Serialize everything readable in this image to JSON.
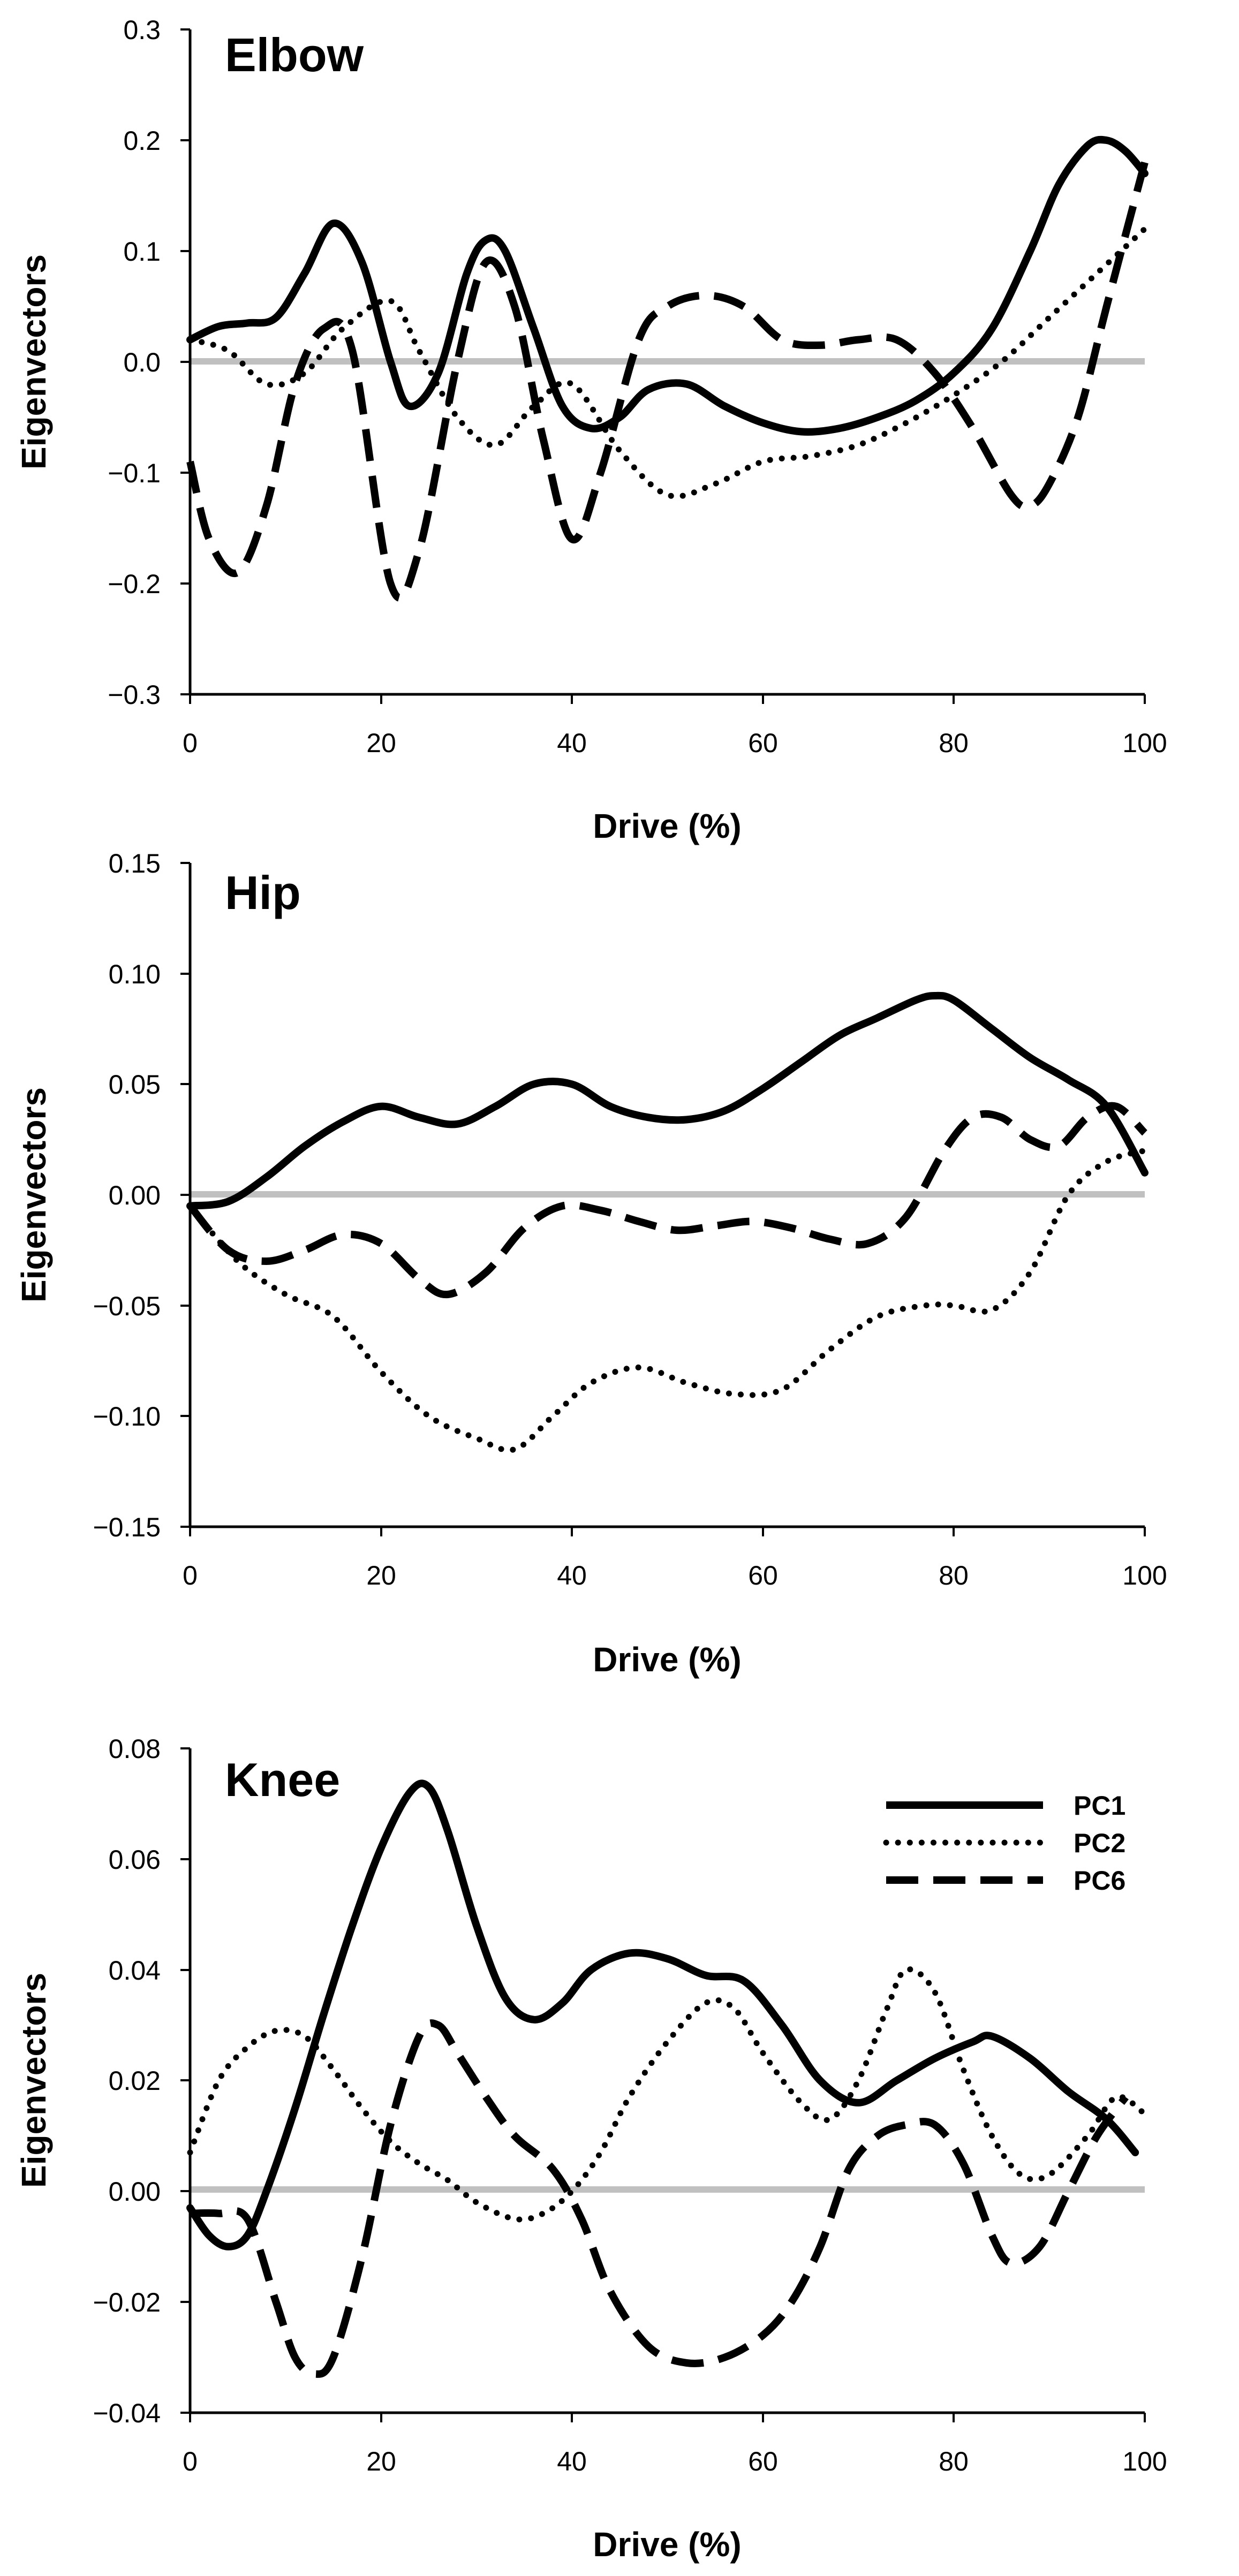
{
  "chart_data": [
    {
      "type": "line",
      "title": "Elbow",
      "xlabel": "Drive (%)",
      "ylabel": "Eigenvectors",
      "xlim": [
        0,
        100
      ],
      "ylim": [
        -0.3,
        0.3
      ],
      "xticks": [
        0,
        20,
        40,
        60,
        80,
        100
      ],
      "yticks": [
        -0.3,
        -0.2,
        -0.1,
        0.0,
        0.1,
        0.2,
        0.3
      ],
      "ytick_labels": [
        "−0.3",
        "−0.2",
        "−0.1",
        "0.0",
        "0.1",
        "0.2",
        "0.3"
      ],
      "xtick_labels": [
        "0",
        "20",
        "40",
        "60",
        "80",
        "100"
      ],
      "zero_line": true,
      "series": [
        {
          "name": "PC1",
          "style": "solid",
          "x": [
            0,
            3,
            6,
            9,
            12,
            15,
            18,
            21,
            23,
            26,
            29,
            31,
            33,
            36,
            39,
            42,
            45,
            48,
            52,
            56,
            60,
            64,
            68,
            72,
            76,
            80,
            84,
            88,
            91,
            94,
            96,
            98,
            100
          ],
          "values": [
            0.02,
            0.032,
            0.035,
            0.04,
            0.08,
            0.125,
            0.09,
            0.0,
            -0.04,
            -0.01,
            0.08,
            0.11,
            0.1,
            0.03,
            -0.04,
            -0.06,
            -0.05,
            -0.025,
            -0.02,
            -0.04,
            -0.055,
            -0.063,
            -0.06,
            -0.05,
            -0.035,
            -0.01,
            0.03,
            0.1,
            0.16,
            0.195,
            0.2,
            0.19,
            0.17
          ]
        },
        {
          "name": "PC2",
          "style": "dotted",
          "x": [
            0,
            4,
            8,
            12,
            16,
            21,
            24,
            28,
            32,
            36,
            40,
            45,
            50,
            55,
            60,
            65,
            70,
            75,
            80,
            85,
            90,
            95,
            100
          ],
          "values": [
            0.02,
            0.01,
            -0.02,
            -0.01,
            0.03,
            0.055,
            0.01,
            -0.05,
            -0.075,
            -0.04,
            -0.02,
            -0.08,
            -0.12,
            -0.11,
            -0.09,
            -0.085,
            -0.075,
            -0.055,
            -0.03,
            0.0,
            0.04,
            0.08,
            0.12
          ]
        },
        {
          "name": "PC6",
          "style": "dashed",
          "x": [
            0,
            2,
            5,
            8,
            11,
            14,
            17,
            21,
            24,
            28,
            31,
            34,
            37,
            40,
            43,
            47,
            50,
            54,
            58,
            62,
            66,
            70,
            74,
            78,
            82,
            86,
            88,
            90,
            93,
            96,
            100
          ],
          "values": [
            -0.09,
            -0.16,
            -0.19,
            -0.13,
            -0.02,
            0.03,
            0.01,
            -0.2,
            -0.17,
            0.0,
            0.09,
            0.05,
            -0.07,
            -0.16,
            -0.1,
            0.02,
            0.05,
            0.06,
            0.05,
            0.02,
            0.015,
            0.02,
            0.02,
            -0.01,
            -0.06,
            -0.12,
            -0.13,
            -0.11,
            -0.05,
            0.05,
            0.18
          ]
        }
      ]
    },
    {
      "type": "line",
      "title": "Hip",
      "xlabel": "Drive (%)",
      "ylabel": "Eigenvectors",
      "xlim": [
        0,
        100
      ],
      "ylim": [
        -0.15,
        0.15
      ],
      "xticks": [
        0,
        20,
        40,
        60,
        80,
        100
      ],
      "yticks": [
        -0.15,
        -0.1,
        -0.05,
        0.0,
        0.05,
        0.1,
        0.15
      ],
      "ytick_labels": [
        "−0.15",
        "−0.10",
        "−0.05",
        "0.00",
        "0.05",
        "0.10",
        "0.15"
      ],
      "xtick_labels": [
        "0",
        "20",
        "40",
        "60",
        "80",
        "100"
      ],
      "zero_line": true,
      "series": [
        {
          "name": "PC1",
          "style": "solid",
          "x": [
            0,
            4,
            8,
            12,
            16,
            20,
            24,
            28,
            32,
            36,
            40,
            44,
            48,
            52,
            56,
            60,
            64,
            68,
            72,
            76,
            78,
            80,
            84,
            88,
            92,
            96,
            100
          ],
          "values": [
            -0.005,
            -0.003,
            0.008,
            0.022,
            0.033,
            0.04,
            0.035,
            0.032,
            0.04,
            0.05,
            0.05,
            0.04,
            0.035,
            0.034,
            0.038,
            0.048,
            0.06,
            0.072,
            0.08,
            0.088,
            0.09,
            0.088,
            0.075,
            0.062,
            0.052,
            0.04,
            0.01
          ]
        },
        {
          "name": "PC2",
          "style": "dotted",
          "x": [
            0,
            5,
            10,
            15,
            20,
            25,
            30,
            34,
            38,
            42,
            47,
            52,
            57,
            62,
            67,
            72,
            77,
            80,
            84,
            88,
            92,
            96,
            100
          ],
          "values": [
            -0.005,
            -0.03,
            -0.045,
            -0.055,
            -0.08,
            -0.1,
            -0.11,
            -0.115,
            -0.1,
            -0.085,
            -0.078,
            -0.085,
            -0.09,
            -0.088,
            -0.07,
            -0.055,
            -0.05,
            -0.05,
            -0.052,
            -0.035,
            0.0,
            0.015,
            0.02
          ]
        },
        {
          "name": "PC6",
          "style": "dashed",
          "x": [
            0,
            4,
            8,
            12,
            16,
            20,
            24,
            27,
            31,
            35,
            39,
            43,
            47,
            51,
            55,
            59,
            63,
            67,
            71,
            75,
            79,
            82,
            85,
            88,
            91,
            94,
            97,
            100
          ],
          "values": [
            -0.005,
            -0.025,
            -0.03,
            -0.025,
            -0.018,
            -0.022,
            -0.038,
            -0.045,
            -0.035,
            -0.015,
            -0.005,
            -0.007,
            -0.012,
            -0.016,
            -0.014,
            -0.012,
            -0.015,
            -0.02,
            -0.022,
            -0.01,
            0.02,
            0.035,
            0.035,
            0.025,
            0.022,
            0.035,
            0.04,
            0.028
          ]
        }
      ]
    },
    {
      "type": "line",
      "title": "Knee",
      "xlabel": "Drive (%)",
      "ylabel": "Eigenvectors",
      "xlim": [
        0,
        100
      ],
      "ylim": [
        -0.04,
        0.08
      ],
      "xticks": [
        0,
        20,
        40,
        60,
        80,
        100
      ],
      "yticks": [
        -0.04,
        -0.02,
        0.0,
        0.02,
        0.04,
        0.06,
        0.08
      ],
      "ytick_labels": [
        "−0.04",
        "−0.02",
        "0.00",
        "0.02",
        "0.04",
        "0.06",
        "0.08"
      ],
      "xtick_labels": [
        "0",
        "20",
        "40",
        "60",
        "80",
        "100"
      ],
      "zero_line": true,
      "legend": {
        "position": "top-right",
        "entries": [
          "PC1",
          "PC2",
          "PC6"
        ]
      },
      "series": [
        {
          "name": "PC1",
          "style": "solid",
          "x": [
            0,
            2,
            4,
            6,
            8,
            11,
            14,
            17,
            20,
            23,
            25,
            27,
            30,
            33,
            36,
            39,
            42,
            46,
            50,
            54,
            58,
            62,
            66,
            70,
            74,
            78,
            82,
            84,
            88,
            92,
            96,
            99
          ],
          "values": [
            -0.003,
            -0.008,
            -0.01,
            -0.008,
            0.0,
            0.015,
            0.032,
            0.048,
            0.062,
            0.072,
            0.073,
            0.065,
            0.048,
            0.035,
            0.031,
            0.034,
            0.04,
            0.043,
            0.042,
            0.039,
            0.038,
            0.03,
            0.02,
            0.016,
            0.02,
            0.024,
            0.027,
            0.028,
            0.024,
            0.018,
            0.013,
            0.007
          ]
        },
        {
          "name": "PC2",
          "style": "dotted",
          "x": [
            0,
            3,
            6,
            9,
            12,
            15,
            18,
            21,
            24,
            27,
            30,
            34,
            37,
            40,
            43,
            46,
            50,
            54,
            57,
            60,
            64,
            67,
            70,
            73,
            75,
            78,
            81,
            84,
            87,
            90,
            94,
            97,
            100
          ],
          "values": [
            0.007,
            0.02,
            0.026,
            0.029,
            0.028,
            0.022,
            0.015,
            0.009,
            0.005,
            0.002,
            -0.002,
            -0.005,
            -0.004,
            0.0,
            0.007,
            0.017,
            0.027,
            0.034,
            0.033,
            0.025,
            0.016,
            0.013,
            0.02,
            0.033,
            0.04,
            0.036,
            0.022,
            0.01,
            0.003,
            0.003,
            0.01,
            0.017,
            0.014
          ]
        },
        {
          "name": "PC6",
          "style": "dashed",
          "x": [
            0,
            3,
            6,
            9,
            11,
            13,
            15,
            18,
            21,
            24,
            26,
            28,
            31,
            34,
            38,
            41,
            44,
            48,
            52,
            56,
            60,
            63,
            66,
            69,
            72,
            75,
            78,
            81,
            84,
            86,
            89,
            92,
            95,
            98
          ],
          "values": [
            -0.004,
            -0.004,
            -0.005,
            -0.02,
            -0.03,
            -0.033,
            -0.03,
            -0.012,
            0.012,
            0.028,
            0.03,
            0.025,
            0.017,
            0.01,
            0.004,
            -0.005,
            -0.018,
            -0.028,
            -0.031,
            -0.03,
            -0.026,
            -0.02,
            -0.01,
            0.004,
            0.01,
            0.012,
            0.012,
            0.005,
            -0.008,
            -0.013,
            -0.01,
            0.0,
            0.01,
            0.017
          ]
        }
      ]
    }
  ]
}
